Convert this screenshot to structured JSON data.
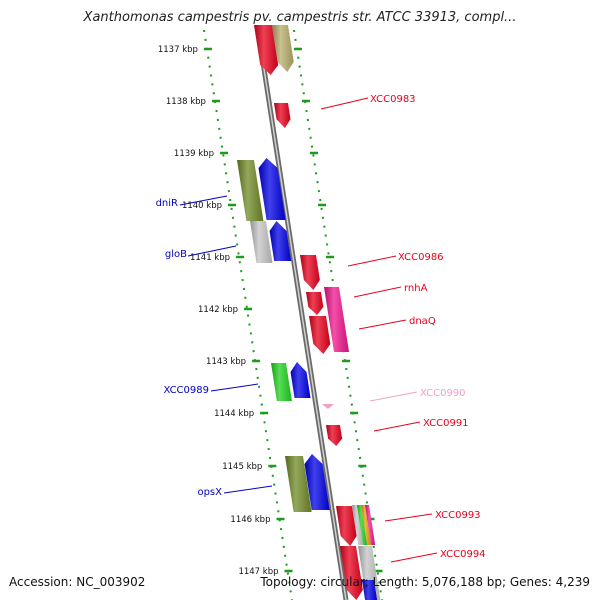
{
  "title": "Xanthomonas campestris pv. campestris str. ATCC 33913, compl...",
  "footer": {
    "accession": "Accession: NC_003902",
    "topology": "Topology: circular; Length: 5,076,188 bp; Genes: 4,239"
  },
  "ruler_labels": [
    "1137 kbp",
    "1138 kbp",
    "1139 kbp",
    "1140 kbp",
    "1141 kbp",
    "1142 kbp",
    "1143 kbp",
    "1144 kbp",
    "1145 kbp",
    "1146 kbp",
    "1147 kbp"
  ],
  "right_labels": [
    {
      "text": "XCC0983",
      "color": "#e8001c"
    },
    {
      "text": "XCC0986",
      "color": "#e8001c"
    },
    {
      "text": "rnhA",
      "color": "#e8001c"
    },
    {
      "text": "dnaQ",
      "color": "#e8001c"
    },
    {
      "text": "XCC0990",
      "color": "#f2a0c8"
    },
    {
      "text": "XCC0991",
      "color": "#e8001c"
    },
    {
      "text": "XCC0993",
      "color": "#e8001c"
    },
    {
      "text": "XCC0994",
      "color": "#e8001c"
    }
  ],
  "left_labels": [
    {
      "text": "dniR",
      "color": "#0000c8"
    },
    {
      "text": "gloB",
      "color": "#0000c8"
    },
    {
      "text": "XCC0989",
      "color": "#0000c8"
    },
    {
      "text": "opsX",
      "color": "#0000c8"
    }
  ]
}
